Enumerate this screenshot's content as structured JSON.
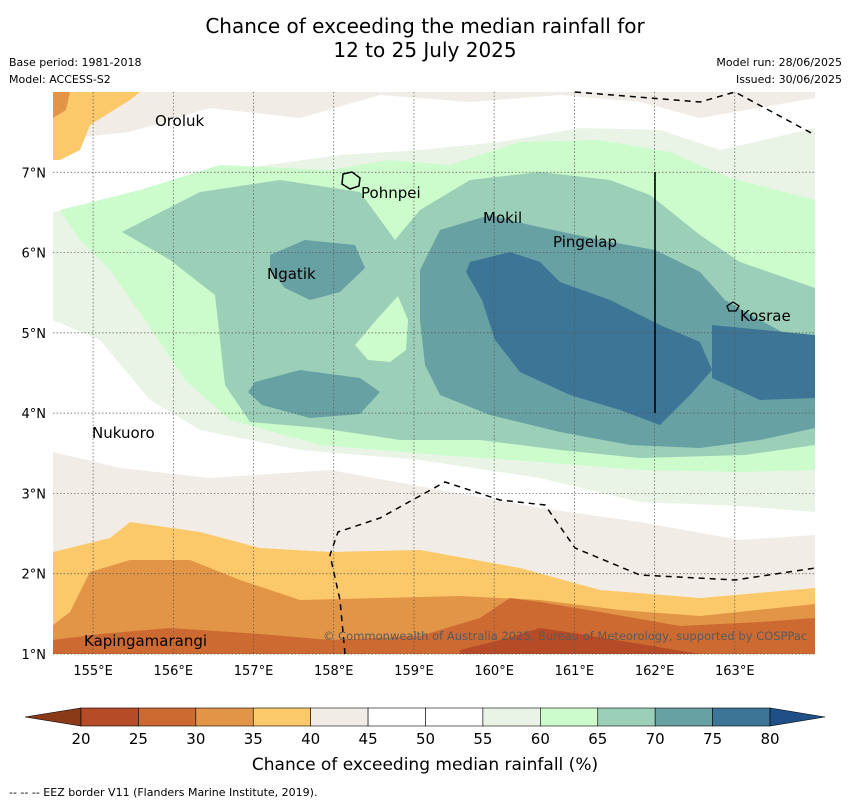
{
  "title_line1": "Chance of exceeding the median rainfall for",
  "title_line2": "12 to 25 July 2025",
  "meta": {
    "base_period": "Base period: 1981-2018",
    "model": "Model: ACCESS-S2",
    "model_run": "Model run: 28/06/2025",
    "issued": "Issued: 30/06/2025"
  },
  "map": {
    "lat_labels": [
      "7°N",
      "6°N",
      "5°N",
      "4°N",
      "3°N",
      "2°N",
      "1°N"
    ],
    "lon_labels": [
      "155°E",
      "156°E",
      "157°E",
      "158°E",
      "159°E",
      "160°E",
      "161°E",
      "162°E",
      "163°E"
    ],
    "places": [
      "Oroluk",
      "Pohnpei",
      "Mokil",
      "Pingelap",
      "Ngatik",
      "Kosrae",
      "Nukuoro",
      "Kapingamarangi"
    ],
    "copyright": "© Commonwealth of Australia 2025, Bureau of Meteorology, supported by COSPPac"
  },
  "colorbar": {
    "ticks": [
      "20",
      "25",
      "30",
      "35",
      "40",
      "45",
      "50",
      "55",
      "60",
      "65",
      "70",
      "75",
      "80"
    ],
    "colors": [
      "#8b3a17",
      "#b64c27",
      "#cd6a32",
      "#e29546",
      "#fbc96a",
      "#f1ede6",
      "#ffffff",
      "#ffffff",
      "#e9f4e7",
      "#ccfccb",
      "#9ccfb8",
      "#68a1a4",
      "#3d7597",
      "#1f4f86"
    ],
    "label": "Chance of exceeding median rainfall (%)"
  },
  "footnote": "--  --  -- EEZ border V11 (Flanders Marine Institute, 2019)."
}
